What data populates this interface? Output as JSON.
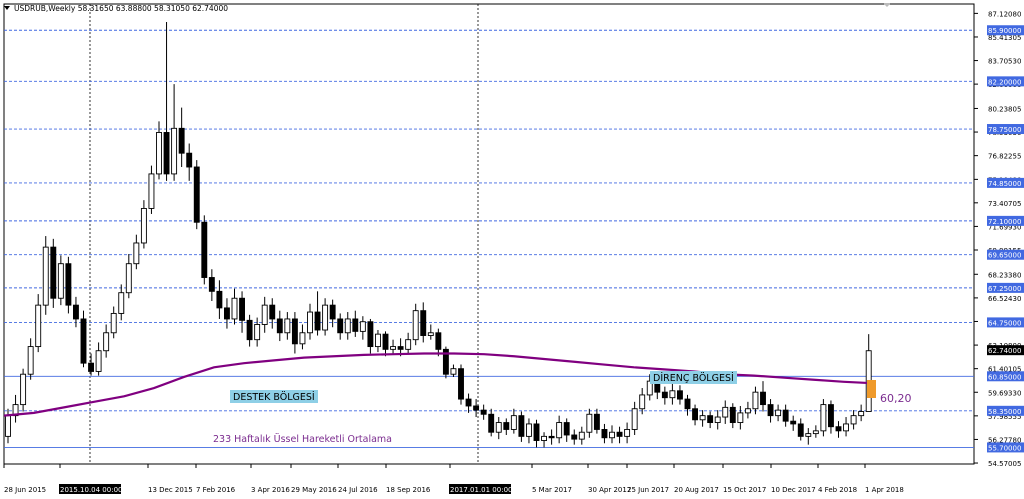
{
  "colors": {
    "background": "#ffffff",
    "candle": "#000000",
    "ema_line": "#800080",
    "level_line": "#4169e1",
    "level_tag_bg": "#4169e1",
    "label_box": "#8ecfe6",
    "highlight_box": "#ef9a2b",
    "annotation_purple": "#7b2c8f"
  },
  "chart_data": {
    "type": "candlestick",
    "title": "USDRUB,Weekly  58.31650 63.88800 58.31050 62.74000",
    "ylim": [
      54.5,
      87.8
    ],
    "y_ticks": [
      "87.12080",
      "85.41305",
      "83.70530",
      "82.00000",
      "80.23805",
      "78.53030",
      "76.82255",
      "75.10480",
      "73.40705",
      "71.69930",
      "69.99155",
      "68.23380",
      "66.52430",
      "64.81830",
      "63.10800",
      "61.40105",
      "59.69330",
      "57.98555",
      "56.27780",
      "54.57005"
    ],
    "x_ticks": [
      "28 Jun 2015",
      "2015.10.04 00:00",
      "13 Dec 2015",
      "7 Feb 2016",
      "3 Apr 2016",
      "29 May 2016",
      "24 Jul 2016",
      "18 Sep 2016",
      "2017.01.01 00:00",
      "5 Mar 2017",
      "30 Apr 2017",
      "25 Jun 2017",
      "20 Aug 2017",
      "15 Oct 2017",
      "10 Dec 2017",
      "4 Feb 2018",
      "1 Apr 2018"
    ],
    "current_price": "62.74000",
    "horizontal_levels": [
      "85.90000",
      "82.20000",
      "78.75000",
      "74.85000",
      "72.10000",
      "69.65000",
      "67.25000",
      "64.75000",
      "60.85000",
      "58.35000",
      "55.70000"
    ],
    "ema_label": "233 Haftalık Üssel Hareketli Ortalama",
    "ema": [
      [
        0,
        58.0
      ],
      [
        30,
        58.2
      ],
      [
        60,
        58.6
      ],
      [
        90,
        59.0
      ],
      [
        120,
        59.4
      ],
      [
        150,
        60.0
      ],
      [
        180,
        60.8
      ],
      [
        210,
        61.5
      ],
      [
        240,
        61.8
      ],
      [
        270,
        62.0
      ],
      [
        300,
        62.2
      ],
      [
        330,
        62.3
      ],
      [
        360,
        62.4
      ],
      [
        390,
        62.45
      ],
      [
        420,
        62.5
      ],
      [
        450,
        62.5
      ],
      [
        480,
        62.45
      ],
      [
        510,
        62.3
      ],
      [
        540,
        62.1
      ],
      [
        570,
        61.9
      ],
      [
        600,
        61.7
      ],
      [
        630,
        61.5
      ],
      [
        660,
        61.35
      ],
      [
        690,
        61.2
      ],
      [
        720,
        61.0
      ],
      [
        750,
        60.9
      ],
      [
        780,
        60.75
      ],
      [
        810,
        60.6
      ],
      [
        840,
        60.45
      ],
      [
        868,
        60.35
      ]
    ],
    "candles": [
      [
        0,
        56.5,
        58.0,
        56.0,
        58.5
      ],
      [
        1,
        58.0,
        58.8,
        57.5,
        59.5
      ],
      [
        2,
        58.8,
        61.0,
        58.3,
        61.4
      ],
      [
        3,
        61.0,
        63.0,
        60.6,
        63.6
      ],
      [
        4,
        63.0,
        66.0,
        62.6,
        66.8
      ],
      [
        5,
        66.0,
        70.2,
        65.3,
        71.0
      ],
      [
        6,
        70.2,
        66.5,
        65.8,
        70.8
      ],
      [
        7,
        66.5,
        69.0,
        66.0,
        69.6
      ],
      [
        8,
        69.0,
        66.0,
        65.4,
        69.5
      ],
      [
        9,
        66.0,
        65.0,
        64.4,
        66.6
      ],
      [
        10,
        65.0,
        61.8,
        61.5,
        65.6
      ],
      [
        11,
        61.8,
        61.2,
        60.9,
        62.5
      ],
      [
        12,
        61.2,
        62.7,
        60.9,
        63.3
      ],
      [
        13,
        62.7,
        64.0,
        62.2,
        64.6
      ],
      [
        14,
        64.0,
        65.4,
        63.6,
        65.9
      ],
      [
        15,
        65.4,
        66.9,
        64.9,
        67.5
      ],
      [
        16,
        66.9,
        69.0,
        66.5,
        69.7
      ],
      [
        17,
        69.0,
        70.5,
        68.6,
        71.1
      ],
      [
        18,
        70.5,
        73.0,
        70.1,
        73.6
      ],
      [
        19,
        73.0,
        75.5,
        72.6,
        76.1
      ],
      [
        20,
        75.5,
        78.5,
        75.1,
        79.3
      ],
      [
        21,
        78.5,
        75.5,
        75.0,
        86.5
      ],
      [
        22,
        75.5,
        78.8,
        75.0,
        82.0
      ],
      [
        23,
        78.8,
        77.0,
        76.0,
        80.3
      ],
      [
        24,
        77.0,
        76.0,
        75.0,
        77.7
      ],
      [
        25,
        76.0,
        72.0,
        71.5,
        76.5
      ],
      [
        26,
        72.0,
        68.0,
        67.5,
        72.5
      ],
      [
        27,
        68.0,
        67.0,
        66.3,
        68.6
      ],
      [
        28,
        67.0,
        65.8,
        65.0,
        67.8
      ],
      [
        29,
        65.8,
        65.0,
        64.3,
        66.5
      ],
      [
        30,
        65.0,
        66.5,
        64.6,
        67.2
      ],
      [
        31,
        66.5,
        64.9,
        64.0,
        67.0
      ],
      [
        32,
        64.9,
        63.5,
        63.0,
        65.3
      ],
      [
        33,
        63.5,
        64.6,
        63.0,
        65.1
      ],
      [
        34,
        64.6,
        66.0,
        64.0,
        66.6
      ],
      [
        35,
        66.0,
        65.0,
        64.3,
        66.5
      ],
      [
        36,
        65.0,
        64.0,
        63.4,
        65.6
      ],
      [
        37,
        64.0,
        65.0,
        63.5,
        65.5
      ],
      [
        38,
        65.0,
        63.2,
        62.5,
        65.5
      ],
      [
        39,
        63.2,
        64.0,
        62.8,
        64.6
      ],
      [
        40,
        64.0,
        65.5,
        63.5,
        66.1
      ],
      [
        41,
        65.5,
        64.2,
        63.8,
        67.0
      ],
      [
        42,
        64.2,
        66.0,
        63.8,
        66.5
      ],
      [
        43,
        66.0,
        65.0,
        64.4,
        66.4
      ],
      [
        44,
        65.0,
        64.0,
        63.5,
        65.4
      ],
      [
        45,
        64.0,
        65.0,
        63.5,
        65.5
      ],
      [
        46,
        65.0,
        64.1,
        63.7,
        65.6
      ],
      [
        47,
        64.1,
        64.8,
        63.5,
        65.2
      ],
      [
        48,
        64.8,
        63.0,
        62.5,
        65.0
      ],
      [
        49,
        63.0,
        63.9,
        62.6,
        64.2
      ],
      [
        50,
        63.9,
        62.8,
        62.3,
        64.1
      ],
      [
        51,
        62.8,
        63.0,
        62.4,
        63.5
      ],
      [
        52,
        63.0,
        62.8,
        62.3,
        63.6
      ],
      [
        53,
        62.8,
        63.5,
        62.5,
        64.0
      ],
      [
        54,
        63.5,
        65.6,
        63.1,
        66.1
      ],
      [
        55,
        65.6,
        63.8,
        63.3,
        66.2
      ],
      [
        56,
        63.8,
        64.0,
        63.5,
        64.6
      ],
      [
        57,
        64.0,
        62.8,
        62.3,
        64.3
      ],
      [
        58,
        62.8,
        61.0,
        60.7,
        63.0
      ],
      [
        59,
        61.0,
        61.4,
        60.8,
        61.7
      ],
      [
        60,
        61.4,
        59.2,
        58.8,
        61.7
      ],
      [
        61,
        59.2,
        58.7,
        58.2,
        59.6
      ],
      [
        62,
        58.7,
        58.4,
        57.9,
        59.2
      ],
      [
        63,
        58.4,
        58.1,
        57.7,
        58.8
      ],
      [
        64,
        58.1,
        56.8,
        56.5,
        58.5
      ],
      [
        65,
        56.8,
        57.5,
        56.3,
        57.9
      ],
      [
        66,
        57.5,
        57.0,
        56.6,
        57.8
      ],
      [
        67,
        57.0,
        58.0,
        56.7,
        58.5
      ],
      [
        68,
        58.0,
        56.5,
        56.1,
        58.3
      ],
      [
        69,
        56.5,
        57.4,
        56.0,
        57.8
      ],
      [
        70,
        57.4,
        56.2,
        55.7,
        57.7
      ],
      [
        71,
        56.2,
        56.5,
        55.7,
        56.8
      ],
      [
        72,
        56.5,
        56.4,
        55.9,
        57.0
      ],
      [
        73,
        56.4,
        57.5,
        56.0,
        58.0
      ],
      [
        74,
        57.5,
        56.6,
        56.1,
        57.8
      ],
      [
        75,
        56.6,
        56.3,
        55.9,
        57.0
      ],
      [
        76,
        56.3,
        56.8,
        55.9,
        57.2
      ],
      [
        77,
        56.8,
        58.1,
        56.4,
        58.5
      ],
      [
        78,
        58.1,
        57.0,
        56.7,
        58.5
      ],
      [
        79,
        57.0,
        56.4,
        56.0,
        57.4
      ],
      [
        80,
        56.4,
        56.8,
        56.0,
        57.3
      ],
      [
        81,
        56.8,
        56.5,
        56.0,
        57.2
      ],
      [
        82,
        56.5,
        57.0,
        56.0,
        57.5
      ],
      [
        83,
        57.0,
        58.5,
        56.6,
        59.0
      ],
      [
        84,
        58.5,
        59.5,
        58.1,
        60.0
      ],
      [
        85,
        59.5,
        60.5,
        59.1,
        61.0
      ],
      [
        86,
        60.5,
        59.7,
        59.2,
        60.9
      ],
      [
        87,
        59.7,
        59.3,
        58.8,
        60.1
      ],
      [
        88,
        59.3,
        59.8,
        58.8,
        60.3
      ],
      [
        89,
        59.8,
        59.2,
        58.8,
        60.2
      ],
      [
        90,
        59.2,
        58.5,
        58.0,
        59.5
      ],
      [
        91,
        58.5,
        57.7,
        57.3,
        58.8
      ],
      [
        92,
        57.7,
        58.0,
        57.2,
        58.4
      ],
      [
        93,
        58.0,
        57.5,
        57.1,
        58.3
      ],
      [
        94,
        57.5,
        57.9,
        57.0,
        58.4
      ],
      [
        95,
        57.9,
        58.6,
        57.4,
        59.1
      ],
      [
        96,
        58.6,
        57.5,
        57.1,
        58.9
      ],
      [
        97,
        57.5,
        58.2,
        57.0,
        58.7
      ],
      [
        98,
        58.2,
        58.5,
        57.8,
        59.0
      ],
      [
        99,
        58.5,
        59.7,
        58.1,
        60.1
      ],
      [
        100,
        59.7,
        58.8,
        58.3,
        60.5
      ],
      [
        101,
        58.8,
        58.0,
        57.5,
        59.2
      ],
      [
        102,
        58.0,
        58.4,
        57.6,
        58.8
      ],
      [
        103,
        58.4,
        57.6,
        57.2,
        58.8
      ],
      [
        104,
        57.6,
        57.4,
        56.9,
        58.0
      ],
      [
        105,
        57.4,
        56.5,
        56.2,
        57.8
      ],
      [
        106,
        56.5,
        56.7,
        55.9,
        57.1
      ],
      [
        107,
        56.7,
        56.9,
        56.4,
        57.3
      ],
      [
        108,
        56.9,
        58.8,
        56.5,
        59.2
      ],
      [
        109,
        58.8,
        57.2,
        56.7,
        59.1
      ],
      [
        110,
        57.2,
        56.9,
        56.4,
        57.6
      ],
      [
        111,
        56.9,
        57.4,
        56.5,
        57.9
      ],
      [
        112,
        57.4,
        58.0,
        57.0,
        58.4
      ],
      [
        113,
        58.0,
        58.3,
        57.6,
        58.8
      ],
      [
        114,
        58.3,
        62.7,
        58.3,
        63.9
      ]
    ]
  },
  "annotations": {
    "support_label": "DESTEK BÖLGESİ",
    "resistance_label": "DİRENÇ BÖLGESİ",
    "ema_value": "60,20"
  }
}
